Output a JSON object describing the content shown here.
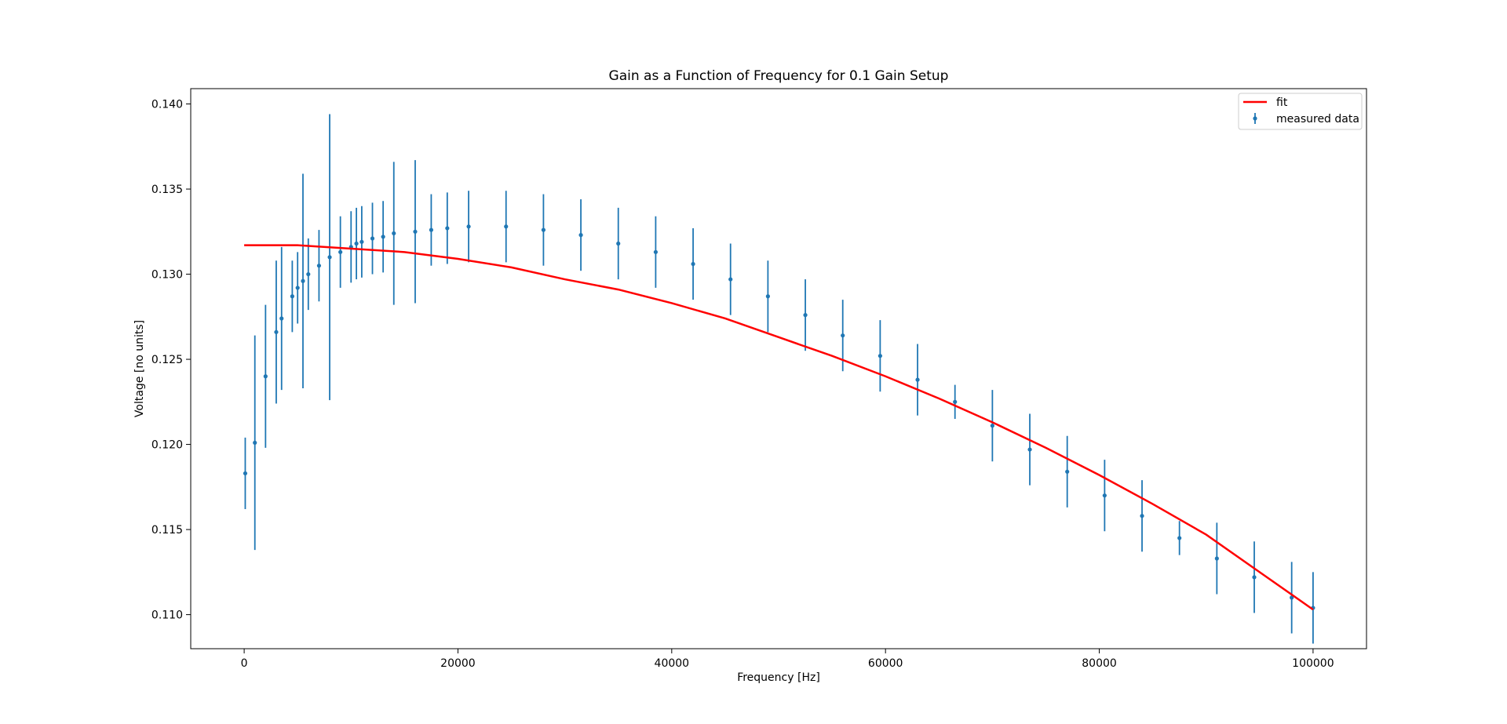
{
  "chart_data": {
    "type": "scatter",
    "title": "Gain as a Function of Frequency for 0.1 Gain Setup",
    "xlabel": "Frequency [Hz]",
    "ylabel": "Voltage [no units]",
    "xlim": [
      -5000,
      105000
    ],
    "ylim": [
      0.108,
      0.1409
    ],
    "xticks": [
      0,
      20000,
      40000,
      60000,
      80000,
      100000
    ],
    "xtick_labels": [
      "0",
      "20000",
      "40000",
      "60000",
      "80000",
      "100000"
    ],
    "yticks": [
      0.11,
      0.115,
      0.12,
      0.125,
      0.13,
      0.135,
      0.14
    ],
    "ytick_labels": [
      "0.110",
      "0.115",
      "0.120",
      "0.125",
      "0.130",
      "0.135",
      "0.140"
    ],
    "grid": false,
    "legend_position": "top-right",
    "series": [
      {
        "name": "fit",
        "kind": "line",
        "color": "#ff0000",
        "x": [
          0,
          5000,
          10000,
          15000,
          20000,
          25000,
          30000,
          35000,
          40000,
          45000,
          50000,
          55000,
          60000,
          65000,
          70000,
          75000,
          80000,
          85000,
          90000,
          95000,
          100000
        ],
        "y": [
          0.1317,
          0.1317,
          0.1315,
          0.1313,
          0.1309,
          0.1304,
          0.1297,
          0.1291,
          0.1283,
          0.1274,
          0.1263,
          0.1252,
          0.124,
          0.1227,
          0.1213,
          0.1198,
          0.1182,
          0.1165,
          0.1147,
          0.1125,
          0.1103
        ]
      },
      {
        "name": "measured data",
        "kind": "errorbar",
        "color": "#1f77b4",
        "x": [
          100,
          1000,
          2000,
          3000,
          3500,
          4500,
          5000,
          5500,
          6000,
          7000,
          8000,
          9000,
          10000,
          10500,
          11000,
          12000,
          13000,
          14000,
          16000,
          17500,
          19000,
          21000,
          24500,
          28000,
          31500,
          35000,
          38500,
          42000,
          45500,
          49000,
          52500,
          56000,
          59500,
          63000,
          66500,
          70000,
          73500,
          77000,
          80500,
          84000,
          87500,
          91000,
          94500,
          98000,
          100000
        ],
        "y": [
          0.1183,
          0.1201,
          0.124,
          0.1266,
          0.1274,
          0.1287,
          0.1292,
          0.1296,
          0.13,
          0.1305,
          0.131,
          0.1313,
          0.1316,
          0.1318,
          0.1319,
          0.1321,
          0.1322,
          0.1324,
          0.1325,
          0.1326,
          0.1327,
          0.1328,
          0.1328,
          0.1326,
          0.1323,
          0.1318,
          0.1313,
          0.1306,
          0.1297,
          0.1287,
          0.1276,
          0.1264,
          0.1252,
          0.1238,
          0.1225,
          0.1211,
          0.1197,
          0.1184,
          0.117,
          0.1158,
          0.1145,
          0.1133,
          0.1122,
          0.111,
          0.1104
        ],
        "yerr": [
          0.0021,
          0.0063,
          0.0042,
          0.0042,
          0.0042,
          0.0021,
          0.0021,
          0.0063,
          0.0021,
          0.0021,
          0.0084,
          0.0021,
          0.0021,
          0.0021,
          0.0021,
          0.0021,
          0.0021,
          0.0042,
          0.0042,
          0.0021,
          0.0021,
          0.0021,
          0.0021,
          0.0021,
          0.0021,
          0.0021,
          0.0021,
          0.0021,
          0.0021,
          0.0021,
          0.0021,
          0.0021,
          0.0021,
          0.0021,
          0.001,
          0.0021,
          0.0021,
          0.0021,
          0.0021,
          0.0021,
          0.001,
          0.0021,
          0.0021,
          0.0021,
          0.0021
        ]
      }
    ]
  }
}
